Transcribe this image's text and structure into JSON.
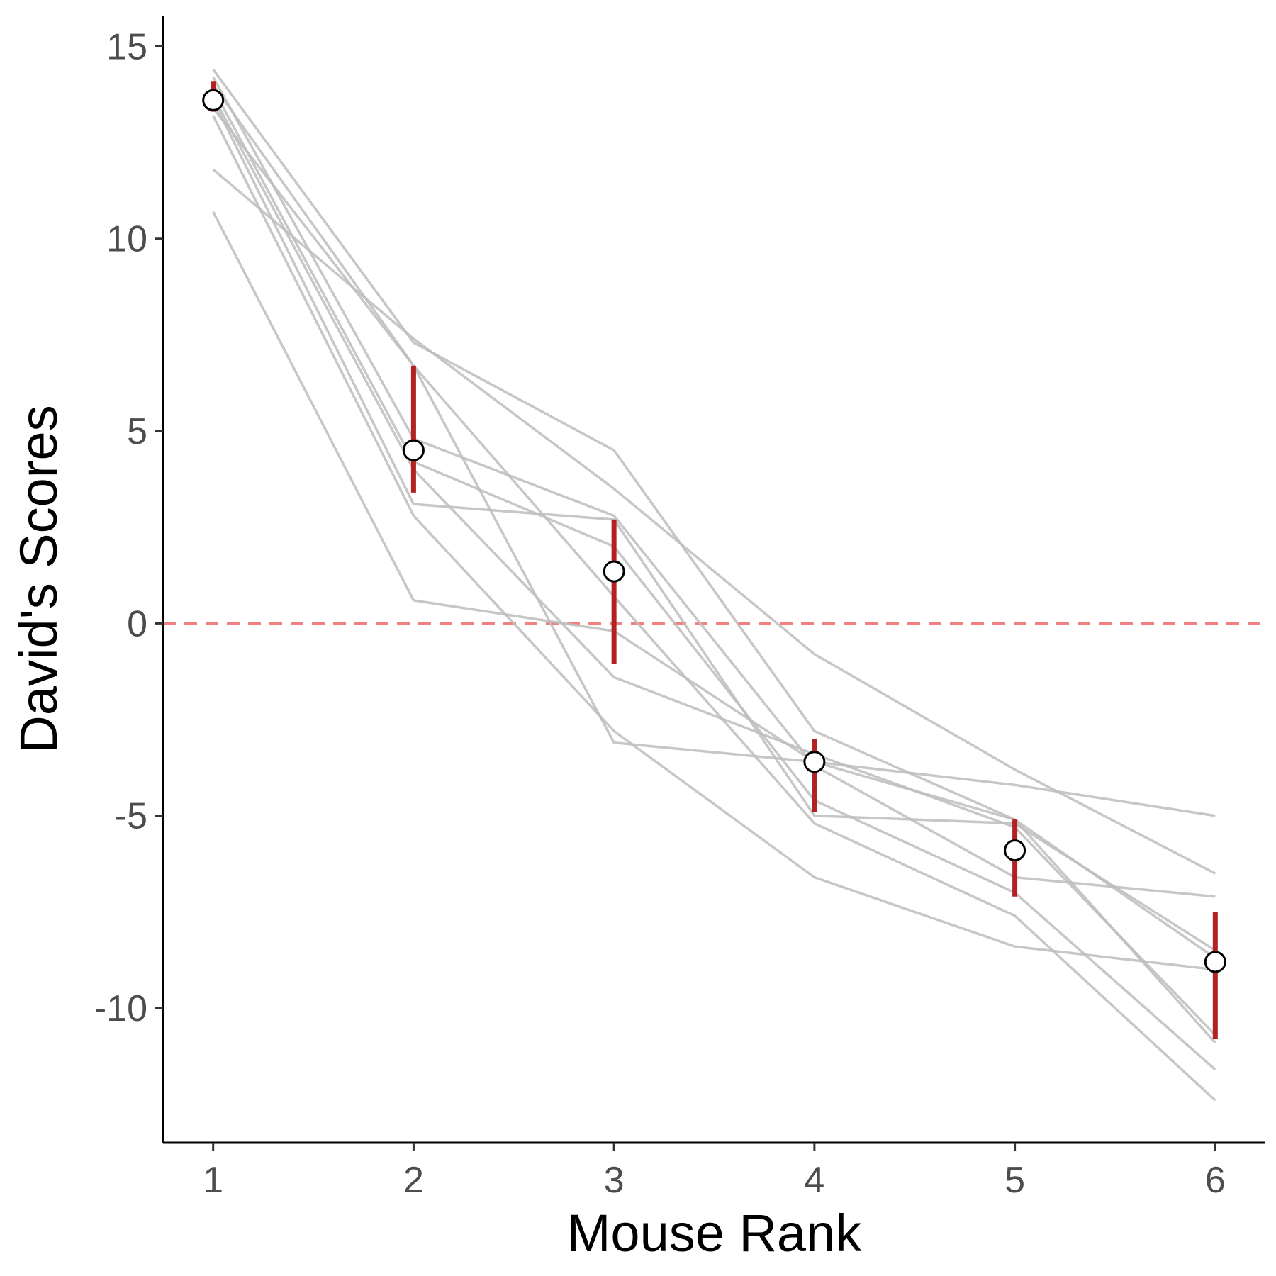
{
  "chart_data": {
    "type": "line",
    "title": "",
    "xlabel": "Mouse Rank",
    "ylabel": "David's Scores",
    "x": [
      1,
      2,
      3,
      4,
      5,
      6
    ],
    "xlim": [
      0.75,
      6.25
    ],
    "ylim": [
      -13.5,
      15.8
    ],
    "x_ticks": [
      1,
      2,
      3,
      4,
      5,
      6
    ],
    "y_ticks": [
      15,
      10,
      5,
      0,
      -5,
      -10
    ],
    "x_tick_labels": [
      "1",
      "2",
      "3",
      "4",
      "5",
      "6"
    ],
    "y_tick_labels": [
      "15",
      "10",
      "5",
      "0",
      "-5",
      "-10"
    ],
    "grid": false,
    "reference_line": {
      "y": 0,
      "style": "dashed",
      "color": "#f28080"
    },
    "series": [
      {
        "values": [
          14.4,
          7.3,
          4.5,
          -2.8,
          -5.1,
          -10.9
        ]
      },
      {
        "values": [
          14.2,
          4.8,
          2.8,
          -3.7,
          -6.6,
          -7.1
        ]
      },
      {
        "values": [
          14.0,
          6.7,
          0.7,
          -5.2,
          -7.6,
          -12.4
        ]
      },
      {
        "values": [
          13.9,
          4.2,
          2.0,
          -4.6,
          -7.0,
          -11.6
        ]
      },
      {
        "values": [
          13.7,
          4.0,
          -1.4,
          -3.4,
          -5.3,
          -10.7
        ]
      },
      {
        "values": [
          13.6,
          3.1,
          2.7,
          -5.0,
          -5.2,
          -8.5
        ]
      },
      {
        "values": [
          13.4,
          6.7,
          -3.1,
          -3.6,
          -4.2,
          -5.0
        ]
      },
      {
        "values": [
          13.2,
          2.8,
          -2.8,
          -6.6,
          -8.4,
          -9.0
        ]
      },
      {
        "values": [
          11.8,
          7.4,
          3.5,
          -0.8,
          -3.8,
          -6.5
        ]
      },
      {
        "values": [
          10.7,
          0.6,
          -0.2,
          -3.6,
          -5.1,
          -8.7
        ]
      }
    ],
    "summary": {
      "mean": [
        13.6,
        4.5,
        1.35,
        -3.6,
        -5.9,
        -8.8
      ],
      "err_low": [
        13.3,
        3.4,
        -1.05,
        -4.9,
        -7.1,
        -10.8
      ],
      "err_high": [
        14.1,
        6.7,
        2.7,
        -3.0,
        -5.1,
        -7.5
      ],
      "point_fill": "#ffffff",
      "point_stroke": "#000000",
      "err_color": "#b22222"
    },
    "trace_color": "#bdbdbd"
  }
}
